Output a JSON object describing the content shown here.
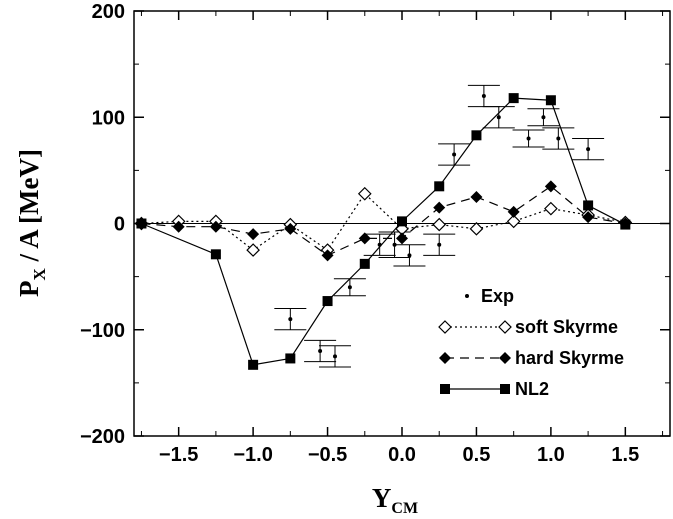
{
  "chart_data": {
    "type": "line",
    "xlabel": "Y",
    "xlabel_sub": "CM",
    "ylabel": "P",
    "ylabel_sub": "X",
    "ylabel_rest": " / A  [MeV]",
    "xlim": [
      -1.8,
      1.8
    ],
    "ylim": [
      -200,
      200
    ],
    "xticks": [
      -1.5,
      -1.0,
      -0.5,
      0.0,
      0.5,
      1.0,
      1.5
    ],
    "xtick_labels": [
      "-1.5",
      "-1.0",
      "-0.5",
      "0.0",
      "0.5",
      "1.0",
      "1.5"
    ],
    "yticks": [
      -200,
      -100,
      0,
      100,
      200
    ],
    "ytick_labels": [
      "-200",
      "-100",
      "0",
      "100",
      "200"
    ],
    "grid": false,
    "legend_position": "bottom-right",
    "series": [
      {
        "name": "Exp",
        "marker": "dot",
        "x": [
          -0.75,
          -0.55,
          -0.45,
          -0.35,
          -0.15,
          -0.05,
          0.05,
          0.25,
          0.35,
          0.55,
          0.65,
          0.85,
          0.95,
          1.05,
          1.25
        ],
        "y": [
          -90,
          -120,
          -125,
          -60,
          -20,
          -20,
          -30,
          -20,
          65,
          120,
          100,
          80,
          100,
          80,
          70
        ],
        "err": [
          10,
          10,
          10,
          8,
          10,
          12,
          10,
          10,
          10,
          10,
          10,
          8,
          8,
          10,
          10
        ]
      },
      {
        "name": "soft Skyrme",
        "marker": "diamond-open",
        "line": "dotted",
        "x": [
          -1.75,
          -1.5,
          -1.25,
          -1.0,
          -0.75,
          -0.5,
          -0.25,
          0.0,
          0.25,
          0.5,
          0.75,
          1.0,
          1.25,
          1.5
        ],
        "y": [
          0,
          2,
          2,
          -25,
          -1,
          -25,
          28,
          -5,
          -1,
          -5,
          2,
          14,
          8,
          1
        ]
      },
      {
        "name": "hard Skyrme",
        "marker": "diamond-filled",
        "line": "dashed",
        "x": [
          -1.75,
          -1.5,
          -1.25,
          -1.0,
          -0.75,
          -0.5,
          -0.25,
          0.0,
          0.25,
          0.5,
          0.75,
          1.0,
          1.25,
          1.5
        ],
        "y": [
          0,
          -3,
          -3,
          -10,
          -5,
          -30,
          -14,
          -14,
          15,
          25,
          11,
          35,
          6,
          0
        ]
      },
      {
        "name": "NL2",
        "marker": "square-filled",
        "line": "solid",
        "x": [
          -1.75,
          -1.25,
          -1.0,
          -0.75,
          -0.5,
          -0.25,
          0.0,
          0.25,
          0.5,
          0.75,
          1.0,
          1.25,
          1.5
        ],
        "y": [
          0,
          -29,
          -133,
          -127,
          -73,
          -38,
          2,
          35,
          83,
          118,
          116,
          17,
          -1
        ]
      }
    ]
  }
}
